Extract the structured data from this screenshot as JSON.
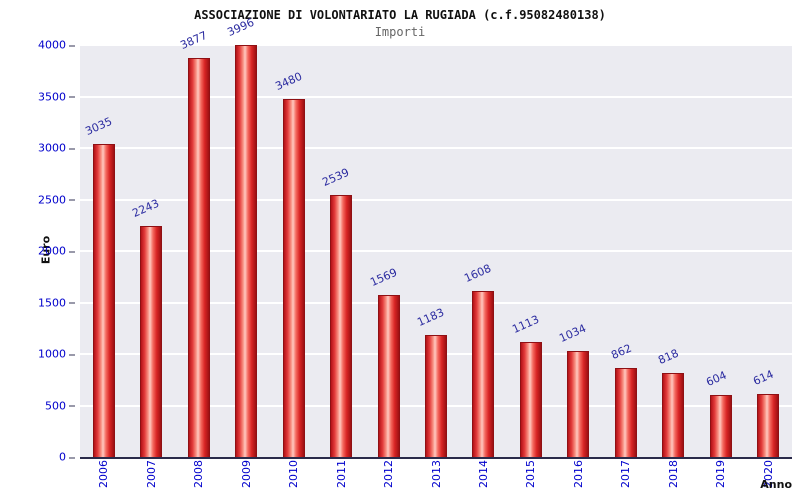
{
  "title": "ASSOCIAZIONE DI VOLONTARIATO LA RUGIADA (c.f.95082480138)",
  "subtitle": "Importi",
  "chart_data": {
    "type": "bar",
    "title": "ASSOCIAZIONE DI VOLONTARIATO LA RUGIADA (c.f.95082480138)",
    "subtitle": "Importi",
    "categories": [
      "2006",
      "2007",
      "2008",
      "2009",
      "2010",
      "2011",
      "2012",
      "2013",
      "2014",
      "2015",
      "2016",
      "2017",
      "2018",
      "2019",
      "2020"
    ],
    "values": [
      3035,
      2243,
      3877,
      3996,
      3480,
      2539,
      1569,
      1183,
      1608,
      1113,
      1034,
      862,
      818,
      604,
      614
    ],
    "xlabel": "Anno",
    "ylabel": "Euro",
    "ylim": [
      0,
      4000
    ],
    "ytick_step": 500,
    "grid": true,
    "legend": "none",
    "colors": {
      "bar": "#e03a3a",
      "bar_border": "#8f1014",
      "value_label": "#2b2ba0",
      "tick_label": "#0000cc",
      "plot_background": "#ebebf1",
      "gridline": "#ffffff"
    }
  }
}
